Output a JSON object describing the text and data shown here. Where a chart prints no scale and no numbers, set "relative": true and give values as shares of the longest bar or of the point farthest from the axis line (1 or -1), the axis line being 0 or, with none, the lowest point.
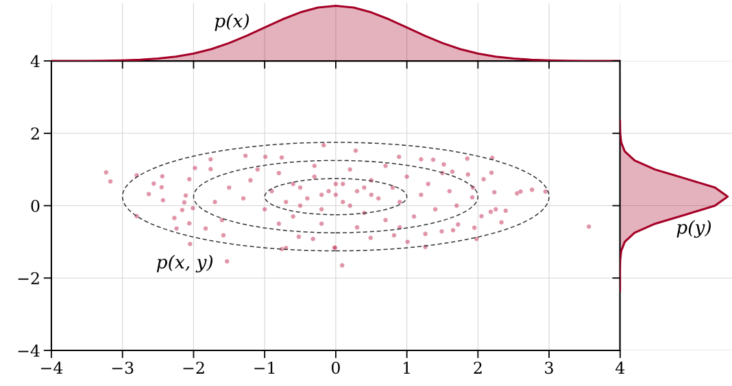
{
  "chart_data": [
    {
      "type": "scatter",
      "xlim": [
        -4,
        4
      ],
      "ylim": [
        -4,
        4
      ],
      "xticks": [
        {
          "value": -4,
          "label": "−4"
        },
        {
          "value": -3,
          "label": "−3"
        },
        {
          "value": -2,
          "label": "−2"
        },
        {
          "value": -1,
          "label": "−1"
        },
        0,
        1,
        2,
        3,
        4
      ],
      "yticks": [
        {
          "value": -4,
          "label": "−4"
        },
        {
          "value": -2,
          "label": "−2"
        },
        0,
        2,
        4
      ],
      "grid": true,
      "annotations": [
        "p(x, y)"
      ],
      "series": [
        {
          "type": "scatter",
          "marker": "circle",
          "color": "#c2294f",
          "x": [
            -3.23,
            -3.17,
            -2.8,
            -2.8,
            -2.63,
            -2.56,
            -2.44,
            -2.45,
            -2.43,
            -2.27,
            -2.24,
            -2.05,
            -2.06,
            -2.11,
            -2.13,
            -2.16,
            -2.01,
            -2.06,
            -1.98,
            -1.76,
            -1.76,
            -1.83,
            -1.58,
            -1.53,
            -1.27,
            -0.99,
            -0.76,
            -0.76,
            -0.7,
            -0.17,
            -0.02,
            -0.32,
            -0.52,
            0.28,
            0.09,
            -0.01,
            0.89,
            1.2,
            1.37,
            1.85,
            2.2,
            2.19,
            2.08,
            1.86,
            2.23,
            2.55,
            2.6,
            2.76,
            2.95,
            3.56,
            2.39,
            2.33,
            2.25,
            2.18,
            2.05,
            1.98,
            1.95,
            1.72,
            1.65,
            1.49,
            1.26,
            1.26,
            1.01,
            0.82,
            0.49,
            1.92,
            1.93,
            1.64,
            1.52,
            -1.5,
            -1.3,
            -1.2,
            -1.0,
            -0.9,
            -0.8,
            -0.7,
            -0.6,
            -0.5,
            -0.4,
            -0.3,
            -0.2,
            -0.1,
            0,
            0.1,
            0.2,
            0.3,
            0.4,
            0.5,
            0.6,
            0.7,
            0.8,
            0.9,
            1.0,
            1.1,
            1.2,
            1.3,
            1.4,
            1.6,
            1.7,
            -1.7,
            -1.6,
            -1.1,
            -0.8,
            -0.3,
            -0.2,
            0.2,
            0.3,
            0.7,
            0.9,
            1.5,
            -0.5,
            0.0,
            0.5,
            -0.2,
            0.1,
            -0.6,
            0.4
          ],
          "values": [
            0.92,
            0.67,
            0.84,
            -0.29,
            0.32,
            0.61,
            0.81,
            0.51,
            0.15,
            -0.34,
            -0.63,
            -1.06,
            -0.49,
            0.28,
            0.09,
            -0.12,
            -0.07,
            0.73,
            1.04,
            1.28,
            1.01,
            -0.63,
            -0.82,
            -1.54,
            1.38,
            1.35,
            1.33,
            -1.2,
            -1.17,
            1.67,
            -1.16,
            -0.92,
            -0.86,
            1.52,
            -1.65,
            -1.16,
            1.35,
            1.28,
            1.27,
            1.3,
            1.32,
            0.91,
            0.73,
            0.86,
            0.37,
            0.34,
            0.39,
            0.44,
            0.39,
            -0.58,
            -0.14,
            -0.46,
            -0.1,
            -0.17,
            -0.29,
            -0.92,
            -0.61,
            -0.52,
            -0.68,
            -0.71,
            -1.14,
            -0.78,
            -1.0,
            -0.82,
            -0.89,
            0.23,
            0.5,
            0.94,
            1.14,
            0.5,
            0.2,
            0.7,
            -0.1,
            0.4,
            0.9,
            0.1,
            -0.3,
            0.5,
            0.2,
            0.8,
            -0.1,
            0.4,
            0.3,
            0.6,
            0.0,
            0.4,
            -0.2,
            0.7,
            0.2,
            -0.4,
            0.5,
            0.1,
            0.8,
            -0.3,
            0.3,
            0.6,
            -0.1,
            0.4,
            0.0,
            0.1,
            -0.4,
            1.0,
            -0.5,
            1.1,
            -0.5,
            1.0,
            -0.6,
            1.1,
            -0.6,
            0.9,
            0.0,
            0.6,
            0.3,
            0.3,
            0.1,
            0.6,
            0.5
          ]
        }
      ]
    },
    {
      "type": "area",
      "relative": true,
      "xlim": [
        -4,
        4
      ],
      "xticks": [
        -4,
        -3,
        -2,
        -1,
        0,
        1,
        2,
        3,
        4
      ],
      "tick_labels": false,
      "grid": "x",
      "annotations": [
        "p(x)"
      ],
      "series": [
        {
          "color": "#a50026",
          "x": [
            -4,
            -3.75,
            -3.5,
            -3.25,
            -3,
            -2.75,
            -2.5,
            -2.25,
            -2,
            -1.75,
            -1.5,
            -1.25,
            -1,
            -0.75,
            -0.5,
            -0.25,
            0,
            0.25,
            0.5,
            0.75,
            1,
            1.25,
            1.5,
            1.75,
            2,
            2.25,
            2.5,
            2.75,
            3,
            3.25,
            3.5,
            3.75,
            4
          ],
          "values": [
            0,
            0.001,
            0.002,
            0.005,
            0.011,
            0.023,
            0.044,
            0.08,
            0.135,
            0.216,
            0.325,
            0.458,
            0.607,
            0.755,
            0.882,
            0.969,
            1,
            0.969,
            0.882,
            0.755,
            0.607,
            0.458,
            0.325,
            0.216,
            0.135,
            0.08,
            0.044,
            0.023,
            0.011,
            0.005,
            0.002,
            0.001,
            0
          ]
        }
      ]
    },
    {
      "type": "area",
      "relative": true,
      "orientation": "horizontal",
      "ylim": [
        -4,
        4
      ],
      "yticks": [
        -4,
        -2,
        0,
        2,
        4
      ],
      "tick_labels": false,
      "grid": "y",
      "annotations": [
        "p(y)"
      ],
      "series": [
        {
          "color": "#a50026",
          "x": [
            -2.35,
            -2.0,
            -1.75,
            -1.5,
            -1.25,
            -1,
            -0.75,
            -0.5,
            -0.25,
            0,
            0.25,
            0.5,
            0.75,
            1,
            1.25,
            1.5,
            1.75,
            2,
            2.35
          ],
          "values": [
            0,
            0,
            0,
            0.002,
            0.011,
            0.044,
            0.135,
            0.325,
            0.607,
            0.882,
            1,
            0.882,
            0.607,
            0.325,
            0.135,
            0.044,
            0.011,
            0.002,
            0
          ]
        }
      ]
    }
  ]
}
